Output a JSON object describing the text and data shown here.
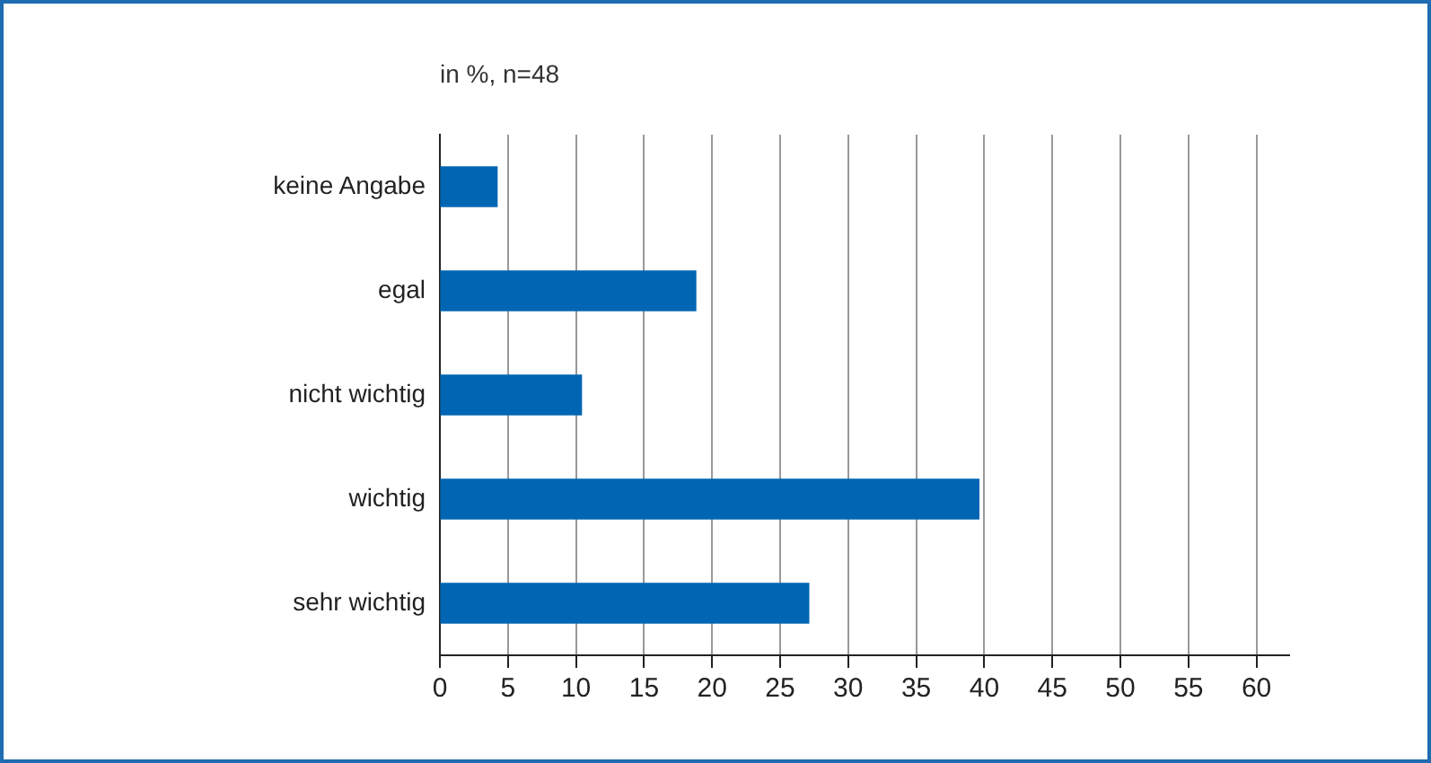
{
  "chart_data": {
    "type": "bar",
    "orientation": "horizontal",
    "title": "in %, n=48",
    "categories": [
      "keine Angabe",
      "egal",
      "nicht wichtig",
      "wichtig",
      "sehr wichtig"
    ],
    "values": [
      4.2,
      18.8,
      10.4,
      39.6,
      27.1
    ],
    "color": "#0066b3",
    "xlim": [
      0,
      62.4
    ],
    "xticks": [
      0,
      5,
      10,
      15,
      20,
      25,
      30,
      35,
      40,
      45,
      50,
      55,
      60
    ],
    "grid": "x",
    "legend": false
  }
}
